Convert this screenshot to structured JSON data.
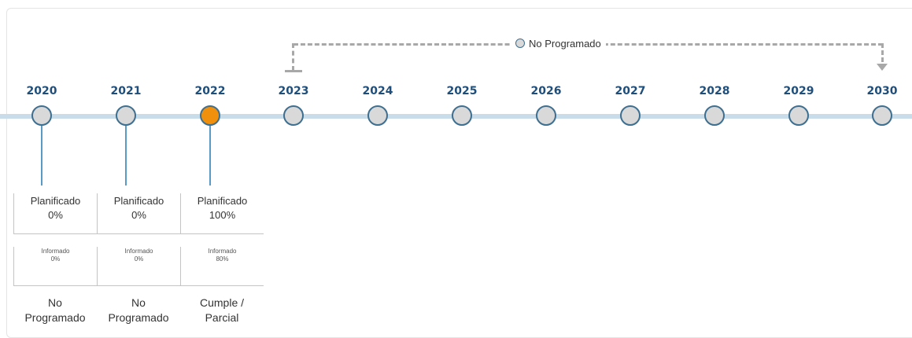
{
  "accent_colors": {
    "timeline_line": "#c9dcea",
    "year_text": "#1e4e79",
    "node_default": "#d9d9d9",
    "node_active": "#f0900c",
    "node_border": "#3d6f91",
    "dashed_connector": "#a8a8a8"
  },
  "legend": {
    "label": "No Programado",
    "icon": "circle-node-icon"
  },
  "timeline": [
    {
      "year": "2020",
      "active": false,
      "card": {
        "planned_label": "Planificado",
        "planned_value": "0%",
        "reported_label": "Informado",
        "reported_value": "0%",
        "status_line1": "No",
        "status_line2": "Programado"
      }
    },
    {
      "year": "2021",
      "active": false,
      "card": {
        "planned_label": "Planificado",
        "planned_value": "0%",
        "reported_label": "Informado",
        "reported_value": "0%",
        "status_line1": "No",
        "status_line2": "Programado"
      }
    },
    {
      "year": "2022",
      "active": true,
      "card": {
        "planned_label": "Planificado",
        "planned_value": "100%",
        "reported_label": "Informado",
        "reported_value": "80%",
        "status_line1": "Cumple /",
        "status_line2": "Parcial"
      }
    },
    {
      "year": "2023",
      "active": false
    },
    {
      "year": "2024",
      "active": false
    },
    {
      "year": "2025",
      "active": false
    },
    {
      "year": "2026",
      "active": false
    },
    {
      "year": "2027",
      "active": false
    },
    {
      "year": "2028",
      "active": false
    },
    {
      "year": "2029",
      "active": false
    },
    {
      "year": "2030",
      "active": false
    }
  ]
}
